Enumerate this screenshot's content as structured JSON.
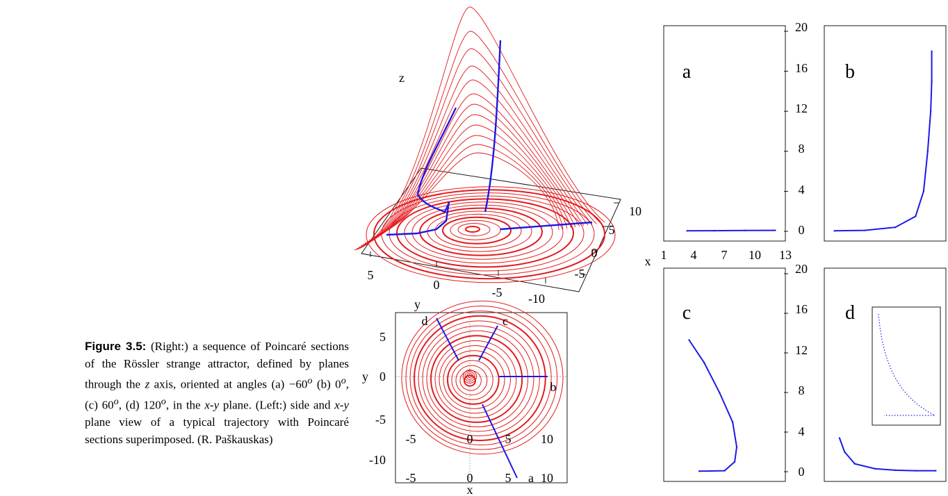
{
  "caption": {
    "label": "Figure 3.5:",
    "part1": "(Right:) a sequence of Poincaré sections of the Rössler strange attractor, defined by planes through the ",
    "z": "z",
    "part2": " axis, oriented at angles (a) −60",
    "deg": "o",
    "part3": " (b) 0",
    "part4": ", (c) 60",
    "part5": ", (d) 120",
    "part6": ", in the ",
    "xy1": "x-y",
    "part7": " plane. (Left:) side and ",
    "xy2": "x-y",
    "part8": " plane view of a typical trajectory with Poincaré sections superimposed. (R. Paškauskas)"
  },
  "view3d": {
    "z_label": "z",
    "y_label": "y",
    "y_ticks": [
      "5",
      "0",
      "-5",
      "-10"
    ],
    "x_ticks": [
      "10",
      "5",
      "0",
      "-5"
    ]
  },
  "xy_view": {
    "x_label": "x",
    "y_label": "y",
    "x_ticks": [
      "-5",
      "0",
      "5",
      "10"
    ],
    "y_ticks": [
      "5",
      "0",
      "-5",
      "-10"
    ],
    "section_labels": [
      "a",
      "b",
      "c",
      "d"
    ]
  },
  "sections": {
    "x_axis_label": "x",
    "bottom_x_ticks": [
      "1",
      "4",
      "7",
      "10",
      "13"
    ],
    "z_ticks": [
      "20",
      "16",
      "12",
      "8",
      "4",
      "0"
    ],
    "panel_labels": [
      "a",
      "b",
      "c",
      "d"
    ]
  },
  "colors": {
    "trajectory": "#e31a1c",
    "section": "#1a1ae6",
    "frame": "#000000"
  },
  "chart_data": [
    {
      "type": "line",
      "title": "",
      "xlabel": "x",
      "ylabel": "",
      "xlim": [
        1,
        13
      ],
      "ylim": [
        0,
        20
      ],
      "series": [
        {
          "x": [
            3.3,
            6,
            9,
            12
          ],
          "y": [
            0.05,
            0.06,
            0.08,
            0.1
          ]
        }
      ]
    },
    {
      "type": "line",
      "title": "",
      "xlabel": "",
      "ylabel": "",
      "xlim": [
        1,
        13
      ],
      "ylim": [
        0,
        20
      ],
      "series": [
        {
          "x": [
            2,
            5,
            8,
            10,
            10.8,
            11.2,
            11.5,
            11.6,
            11.6
          ],
          "y": [
            0.05,
            0.1,
            0.4,
            1.5,
            4,
            8,
            12,
            15,
            18
          ]
        }
      ]
    },
    {
      "type": "line",
      "title": "",
      "xlabel": "",
      "ylabel": "",
      "xlim": [
        1,
        13
      ],
      "ylim": [
        0,
        20
      ],
      "series": [
        {
          "x": [
            4.5,
            7,
            8,
            8.2,
            7.8,
            6.5,
            5,
            3.5
          ],
          "y": [
            0.05,
            0.1,
            1,
            2.5,
            5,
            8,
            11,
            13.3
          ]
        }
      ]
    },
    {
      "type": "line",
      "title": "",
      "xlabel": "",
      "ylabel": "",
      "xlim": [
        1,
        13
      ],
      "ylim": [
        0,
        20
      ],
      "series": [
        {
          "x": [
            2.5,
            3,
            4,
            6,
            8,
            10,
            12
          ],
          "y": [
            3.4,
            2,
            0.8,
            0.3,
            0.15,
            0.1,
            0.1
          ]
        }
      ]
    }
  ]
}
